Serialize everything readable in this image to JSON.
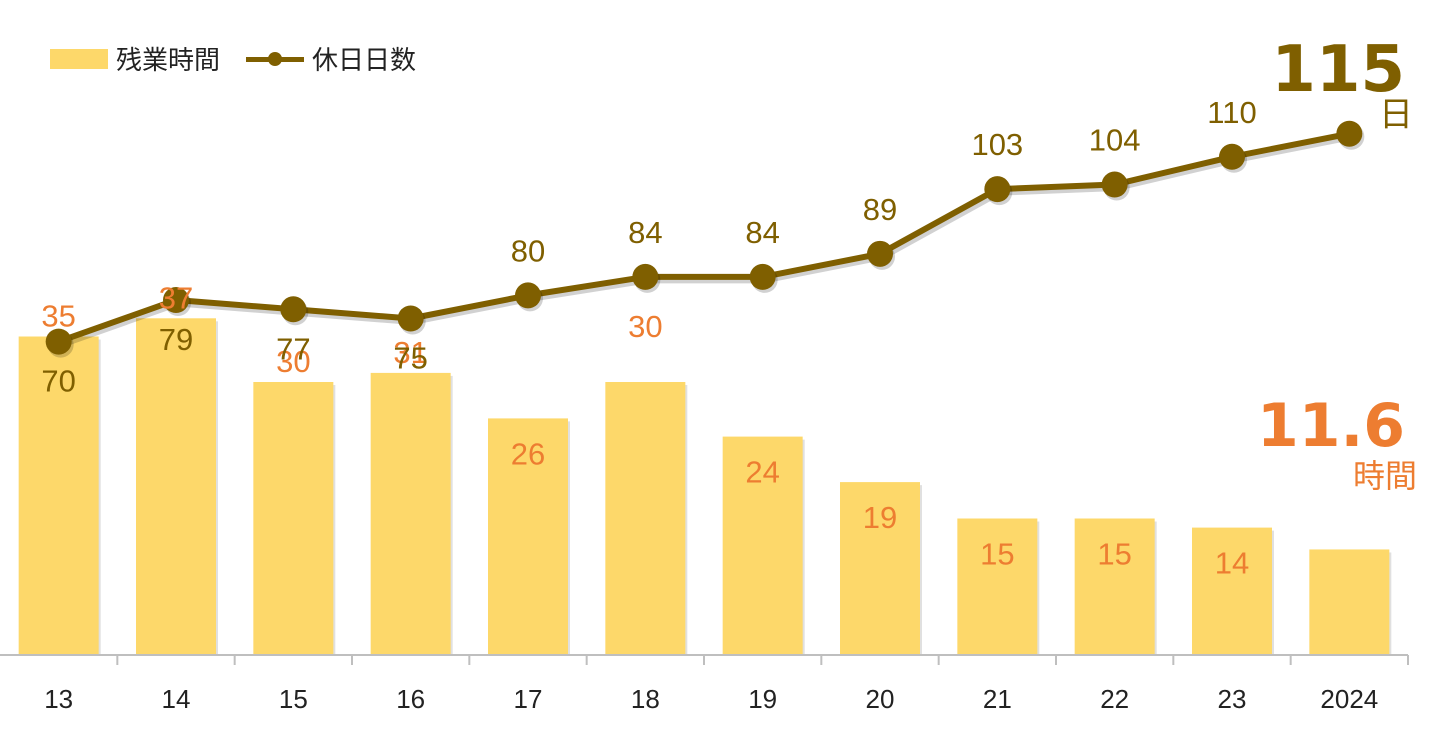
{
  "legend": {
    "bar_label": "残業時間",
    "line_label": "休日日数"
  },
  "highlight": {
    "line_value": "115",
    "line_unit": "日",
    "bar_value": "11.6",
    "bar_unit": "時間"
  },
  "colors": {
    "bar": "#fdd86a",
    "bar_label": "#ed7d31",
    "line": "#7f5f00",
    "line_label": "#7f5f00",
    "axis": "#bfbfbf",
    "tick_label": "#222222"
  },
  "chart_data": {
    "type": "bar",
    "categories": [
      "13",
      "14",
      "15",
      "16",
      "17",
      "18",
      "19",
      "20",
      "21",
      "22",
      "23",
      "2024"
    ],
    "series": [
      {
        "name": "残業時間",
        "type": "bar",
        "values": [
          35,
          37,
          30,
          31,
          26,
          30,
          24,
          19,
          15,
          15,
          14,
          11.6
        ],
        "labels": [
          "35",
          "37",
          "30",
          "31",
          "26",
          "30",
          "24",
          "19",
          "15",
          "15",
          "14",
          ""
        ]
      },
      {
        "name": "休日日数",
        "type": "line",
        "values": [
          70,
          79,
          77,
          75,
          80,
          84,
          84,
          89,
          103,
          104,
          110,
          115
        ],
        "labels": [
          "70",
          "79",
          "77",
          "75",
          "80",
          "84",
          "84",
          "89",
          "103",
          "104",
          "110",
          ""
        ]
      }
    ],
    "ylim_bar": [
      0,
      52
    ],
    "ylim_line": [
      0,
      140
    ],
    "grid": false,
    "legend_position": "top-left"
  }
}
